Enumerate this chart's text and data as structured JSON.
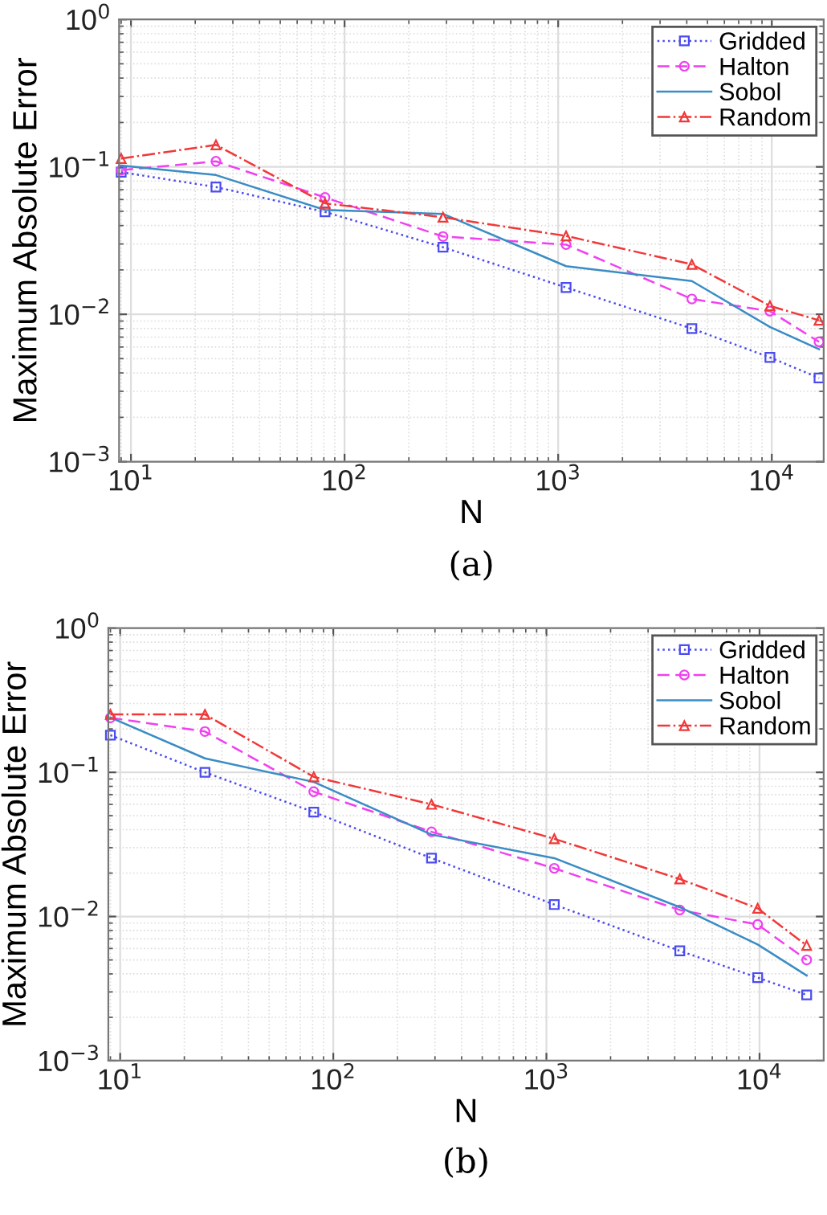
{
  "chart_data": [
    {
      "type": "line",
      "xlabel": "N",
      "ylabel": "Maximum Absolute Error",
      "annotations": [
        "(a)"
      ],
      "log": "xy",
      "grid": true,
      "legend": "top right",
      "x": [
        9,
        25,
        81,
        289,
        1089,
        4225,
        9801,
        16641
      ],
      "xlim": [
        8.8,
        17500
      ],
      "ylim": [
        0.001,
        1
      ],
      "xticks": [
        {
          "value": 10,
          "label": "10$^{1}$"
        },
        {
          "value": 100,
          "label": "10$^{2}$"
        },
        {
          "value": 1000,
          "label": "10$^{3}$"
        },
        {
          "value": 10000,
          "label": "10$^{4}$"
        }
      ],
      "yticks": [
        {
          "value": 0.001,
          "label": "10$^{−3}$"
        },
        {
          "value": 0.01,
          "label": "10$^{−2}$"
        },
        {
          "value": 0.1,
          "label": "10$^{−1}$"
        },
        {
          "value": 1,
          "label": "10$^{0}$"
        }
      ],
      "series": [
        {
          "name": "Gridded",
          "color": "#4b4bf0",
          "marker": "square",
          "line_style": "dotted",
          "values": [
            0.092,
            0.073,
            0.0495,
            0.0285,
            0.0152,
            0.008,
            0.0051,
            0.0037
          ]
        },
        {
          "name": "Halton",
          "color": "#f040f0",
          "marker": "circle",
          "line_style": "dashed",
          "values": [
            0.095,
            0.109,
            0.062,
            0.0337,
            0.0297,
            0.0127,
            0.0105,
            0.0065
          ]
        },
        {
          "name": "Sobol",
          "color": "#3a8cc4",
          "marker": "none",
          "line_style": "solid",
          "values": [
            0.102,
            0.088,
            0.051,
            0.048,
            0.0212,
            0.0168,
            0.0082,
            0.0058
          ]
        },
        {
          "name": "Random",
          "color": "#f03838",
          "marker": "triangle",
          "line_style": "dashdot",
          "values": [
            0.114,
            0.141,
            0.0566,
            0.0455,
            0.034,
            0.0218,
            0.0114,
            0.0091
          ]
        }
      ]
    },
    {
      "type": "line",
      "xlabel": "N",
      "ylabel": "Maximum Absolute Error",
      "annotations": [
        "(b)"
      ],
      "log": "xy",
      "grid": true,
      "legend": "top right",
      "x": [
        9,
        25,
        81,
        289,
        1089,
        4225,
        9801,
        16641
      ],
      "xlim": [
        8.8,
        20000
      ],
      "ylim": [
        0.001,
        1
      ],
      "xticks": [
        {
          "value": 10,
          "label": "10$^{1}$"
        },
        {
          "value": 100,
          "label": "10$^{2}$"
        },
        {
          "value": 1000,
          "label": "10$^{3}$"
        },
        {
          "value": 10000,
          "label": "10$^{4}$"
        }
      ],
      "yticks": [
        {
          "value": 0.001,
          "label": "10$^{−3}$"
        },
        {
          "value": 0.01,
          "label": "10$^{−2}$"
        },
        {
          "value": 0.1,
          "label": "10$^{−1}$"
        },
        {
          "value": 1,
          "label": "10$^{0}$"
        }
      ],
      "series": [
        {
          "name": "Gridded",
          "color": "#4b4bf0",
          "marker": "square",
          "line_style": "dotted",
          "values": [
            0.181,
            0.1,
            0.053,
            0.0254,
            0.0121,
            0.00578,
            0.00377,
            0.00286
          ]
        },
        {
          "name": "Halton",
          "color": "#f040f0",
          "marker": "circle",
          "line_style": "dashed",
          "values": [
            0.239,
            0.192,
            0.0734,
            0.0387,
            0.0216,
            0.0111,
            0.0088,
            0.005
          ]
        },
        {
          "name": "Sobol",
          "color": "#3a8cc4",
          "marker": "none",
          "line_style": "solid",
          "values": [
            0.24,
            0.125,
            0.0857,
            0.037,
            0.0254,
            0.0116,
            0.0064,
            0.0039
          ]
        },
        {
          "name": "Random",
          "color": "#f03838",
          "marker": "triangle",
          "line_style": "dashdot",
          "values": [
            0.252,
            0.252,
            0.093,
            0.06,
            0.0346,
            0.0182,
            0.0114,
            0.0063
          ]
        }
      ]
    }
  ]
}
